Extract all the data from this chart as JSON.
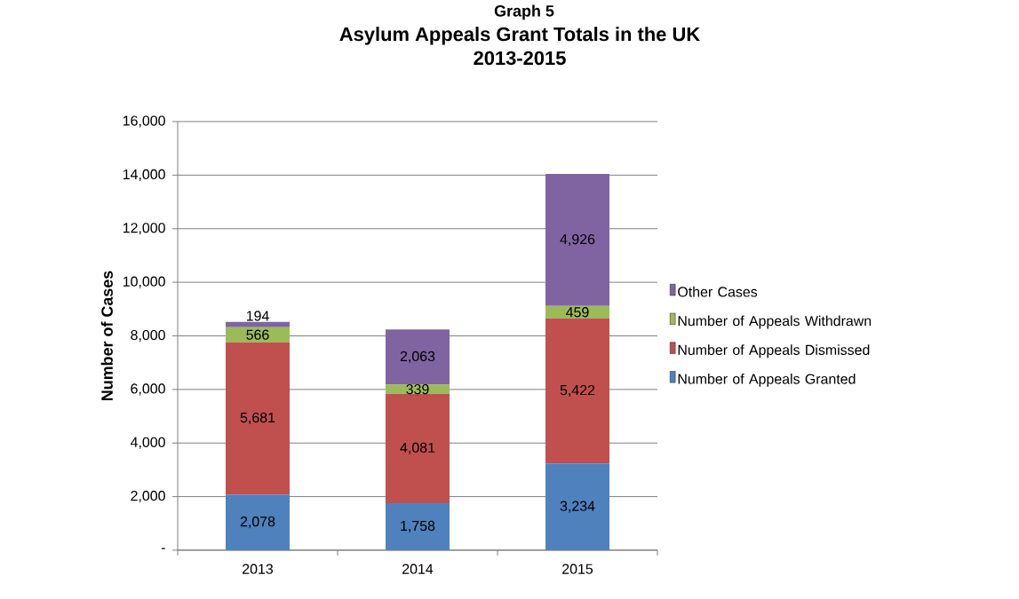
{
  "chart_data": {
    "type": "bar",
    "stacked": true,
    "title": "Asylum Appeals Grant Totals in the UK\n2013-2015",
    "annotations": [
      "Graph 5"
    ],
    "ylabel": "Number of Cases",
    "categories": [
      "2013",
      "2014",
      "2015"
    ],
    "series": [
      {
        "name": "Number of Appeals Granted",
        "color": "#4f81bd",
        "values": [
          2078,
          1758,
          3234
        ],
        "value_labels": [
          "2,078",
          "1,758",
          "3,234"
        ]
      },
      {
        "name": "Number of Appeals Dismissed",
        "color": "#c0504d",
        "values": [
          5681,
          4081,
          5422
        ],
        "value_labels": [
          "5,681",
          "4,081",
          "5,422"
        ]
      },
      {
        "name": "Number of Appeals Withdrawn",
        "color": "#9bbb59",
        "values": [
          566,
          339,
          459
        ],
        "value_labels": [
          "566",
          "339",
          "459"
        ]
      },
      {
        "name": "Other Cases",
        "color": "#8064a2",
        "values": [
          194,
          2063,
          4926
        ],
        "value_labels": [
          "194",
          "2,063",
          "4,926"
        ]
      }
    ],
    "ylim": [
      0,
      16000
    ],
    "yticks": [
      {
        "value": 0,
        "label": "-"
      },
      {
        "value": 2000,
        "label": "2,000"
      },
      {
        "value": 4000,
        "label": "4,000"
      },
      {
        "value": 6000,
        "label": "6,000"
      },
      {
        "value": 8000,
        "label": "8,000"
      },
      {
        "value": 10000,
        "label": "10,000"
      },
      {
        "value": 12000,
        "label": "12,000"
      },
      {
        "value": 14000,
        "label": "14,000"
      },
      {
        "value": 16000,
        "label": "16,000"
      }
    ],
    "grid": "y",
    "legend": "right"
  }
}
